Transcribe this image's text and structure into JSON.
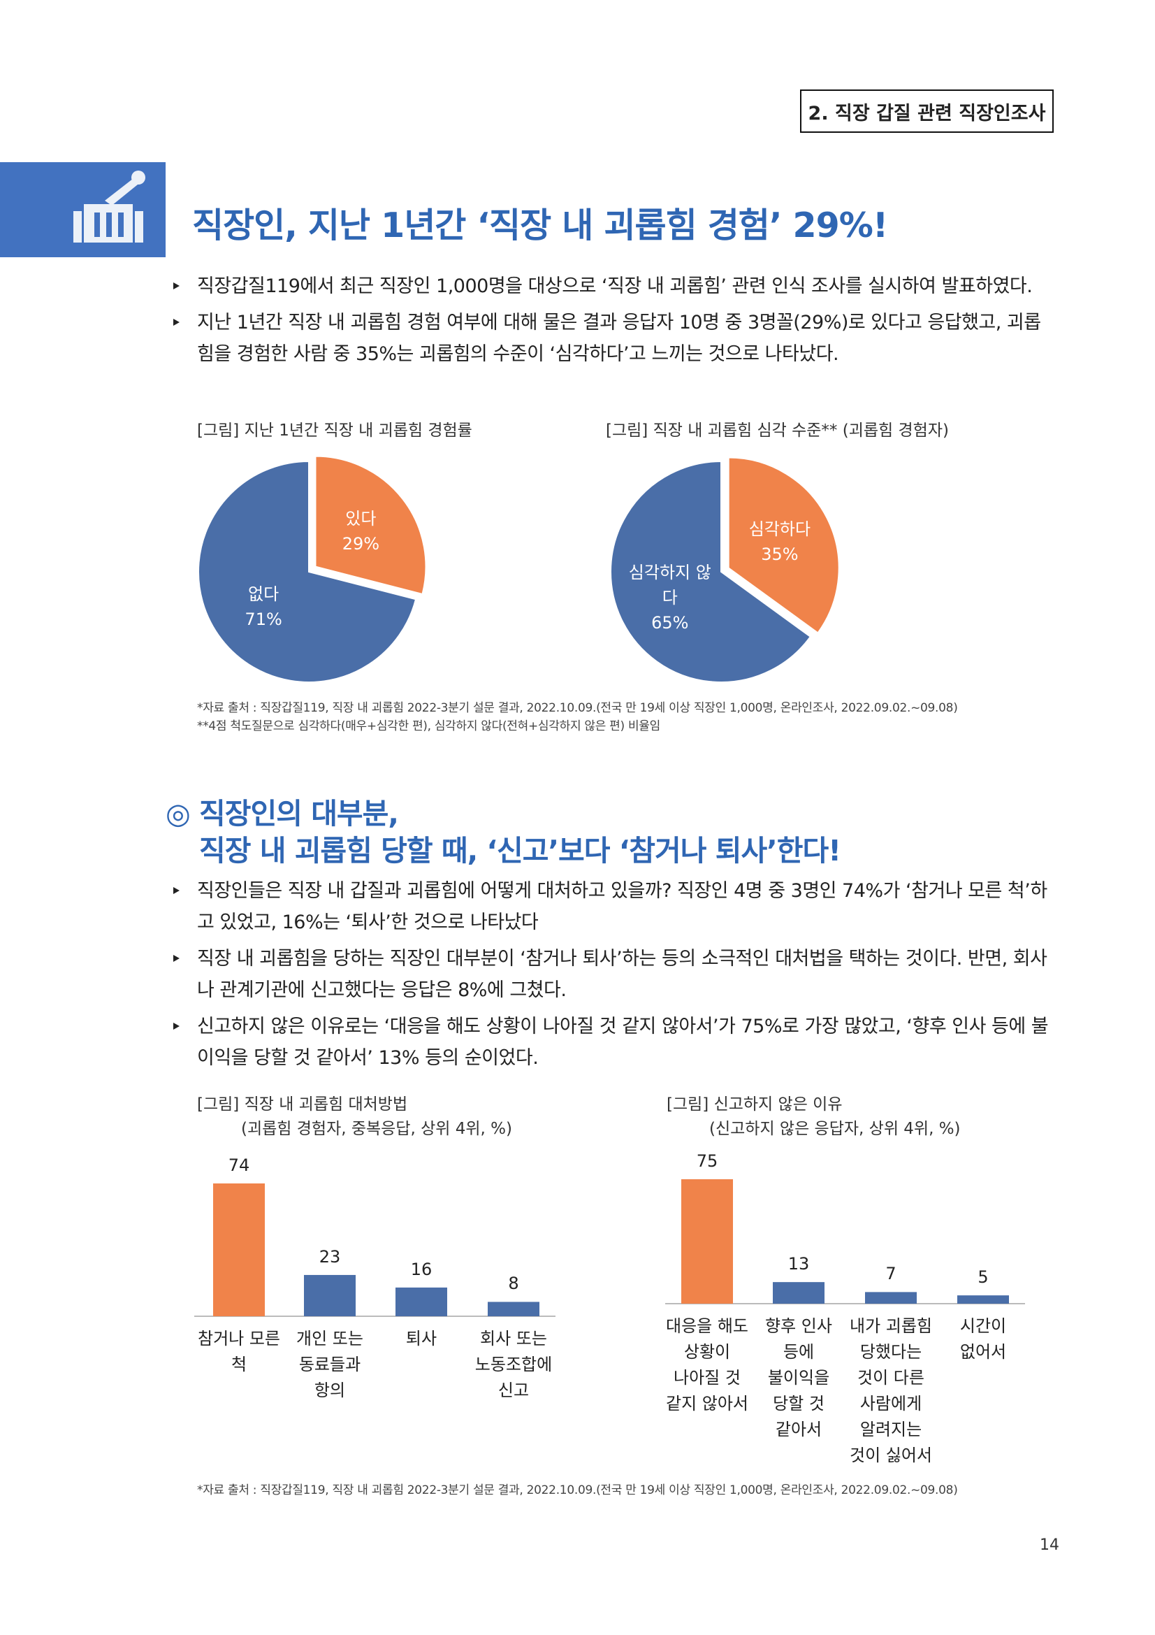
{
  "header": {
    "section_tag": "2. 직장 갑질 관련 직장인조사",
    "title": "직장인, 지난 1년간 ‘직장 내 괴롭힘 경험’ 29%!"
  },
  "section1": {
    "bullets": [
      "직장갑질119에서 최근 직장인 1,000명을 대상으로 ‘직장 내 괴롭힘’ 관련 인식 조사를 실시하여 발표하였다.",
      "지난 1년간 직장 내 괴롭힘 경험 여부에 대해 물은 결과 응답자 10명 중 3명꼴(29%)로 있다고 응답했고, 괴롭힘을 경험한 사람 중 35%는 괴롭힘의 수준이 ‘심각하다’고 느끼는 것으로 나타났다."
    ],
    "notes": [
      "*자료 출처 : 직장갑질119, 직장 내 괴롭힘 2022-3분기 설문 결과, 2022.10.09.(전국 만 19세 이상 직장인 1,000명, 온라인조사, 2022.09.02.~09.08)",
      "**4점 척도질문으로 심각하다(매우+심각한 편), 심각하지 않다(전혀+심각하지 않은 편) 비율임"
    ]
  },
  "section2": {
    "heading": [
      "◎ 직장인의 대부분,",
      "직장 내 괴롭힘 당할 때, ‘신고’보다 ‘참거나 퇴사’한다!"
    ],
    "bullets": [
      "직장인들은 직장 내 갑질과 괴롭힘에 어떻게 대처하고 있을까? 직장인 4명 중 3명인 74%가 ‘참거나 모른 척’하고 있었고, 16%는 ‘퇴사’한 것으로 나타났다",
      "직장 내 괴롭힘을 당하는 직장인 대부분이 ‘참거나 퇴사’하는 등의 소극적인 대처법을 택하는 것이다. 반면, 회사나 관계기관에 신고했다는 응답은 8%에 그쳤다.",
      "신고하지 않은 이유로는 ‘대응을 해도 상황이 나아질 것 같지 않아서’가 75%로 가장 많았고, ‘향후 인사 등에 불이익을 당할 것 같아서’ 13% 등의 순이었다."
    ],
    "notes": [
      "*자료 출처 : 직장갑질119, 직장 내 괴롭힘 2022-3분기 설문 결과, 2022.10.09.(전국 만 19세 이상 직장인 1,000명, 온라인조사, 2022.09.02.~09.08)"
    ]
  },
  "chart_data": [
    {
      "type": "pie",
      "title": "[그림] 지난 1년간 직장 내 괴롭힘 경험률",
      "categories": [
        "있다",
        "없다"
      ],
      "values": [
        29,
        71
      ],
      "value_labels": [
        "29%",
        "71%"
      ],
      "colors": [
        "#f0834a",
        "#4a6ea8"
      ]
    },
    {
      "type": "pie",
      "title": "[그림] 직장 내 괴롭힘 심각 수준** (괴롭힘 경험자)",
      "categories": [
        "심각하다",
        "심각하지 않다"
      ],
      "values": [
        35,
        65
      ],
      "value_labels": [
        "35%",
        "65%"
      ],
      "colors": [
        "#f0834a",
        "#4a6ea8"
      ]
    },
    {
      "type": "bar",
      "title": "[그림] 직장 내 괴롭힘 대처방법",
      "subtitle": "(괴롭힘 경험자, 중복응답, 상위 4위, %)",
      "categories": [
        "참거나 모른 척",
        "개인 또는 동료들과 항의",
        "퇴사",
        "회사 또는 노동조합에 신고"
      ],
      "values": [
        74,
        23,
        16,
        8
      ],
      "colors": [
        "#f0834a",
        "#4a6ea8",
        "#4a6ea8",
        "#4a6ea8"
      ]
    },
    {
      "type": "bar",
      "title": "[그림] 신고하지 않은 이유",
      "subtitle": "(신고하지 않은 응답자, 상위 4위, %)",
      "categories": [
        "대응을 해도 상황이 나아질 것 같지 않아서",
        "향후 인사 등에 불이익을 당할 것 같아서",
        "내가 괴롭힘 당했다는 것이 다른 사람에게 알려지는 것이 싫어서",
        "시간이 없어서"
      ],
      "values": [
        75,
        13,
        7,
        5
      ],
      "colors": [
        "#f0834a",
        "#4a6ea8",
        "#4a6ea8",
        "#4a6ea8"
      ]
    }
  ],
  "page_number": "14"
}
